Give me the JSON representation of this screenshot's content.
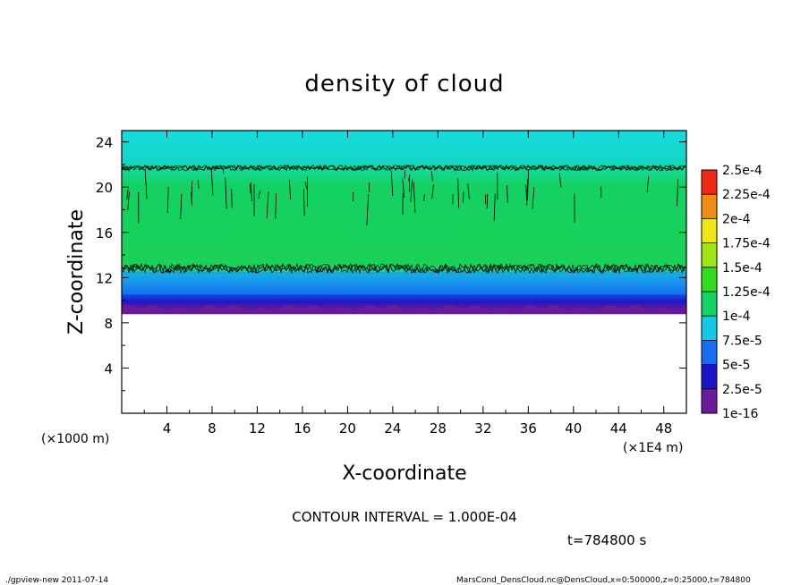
{
  "chart_data": {
    "type": "heatmap",
    "title": "density of cloud",
    "xlabel": "X-coordinate",
    "ylabel": "Z-coordinate",
    "x_unit": "(×1E4 m)",
    "y_unit": "(×1000 m)",
    "xlim": [
      0,
      50
    ],
    "ylim": [
      0,
      25
    ],
    "x_ticks": [
      4,
      8,
      12,
      16,
      20,
      24,
      28,
      32,
      36,
      40,
      44,
      48
    ],
    "y_ticks": [
      4,
      8,
      12,
      16,
      20,
      24
    ],
    "grid": false,
    "colorbar": {
      "position": "right",
      "levels": [
        "1e-16",
        "2.5e-5",
        "5e-5",
        "7.5e-5",
        "1e-4",
        "1.25e-4",
        "1.5e-4",
        "1.75e-4",
        "2e-4",
        "2.25e-4",
        "2.5e-4"
      ],
      "colors": [
        "#6a1b9a",
        "#1a14c8",
        "#1a6cf0",
        "#14c8e6",
        "#14d264",
        "#32dc1e",
        "#a0e614",
        "#f0e614",
        "#f08c14",
        "#f02814",
        "#f08c8c"
      ]
    },
    "regions": [
      {
        "z_from": 0,
        "z_to": 9,
        "level": "none"
      },
      {
        "z_from": 9,
        "z_to": 9.8,
        "level": "1e-16"
      },
      {
        "z_from": 9.8,
        "z_to": 10.5,
        "level": "2.5e-5"
      },
      {
        "z_from": 10.5,
        "z_to": 12.5,
        "level": "5e-5"
      },
      {
        "z_from": 12.5,
        "z_to": 22,
        "level": "1e-4"
      },
      {
        "z_from": 22,
        "z_to": 25,
        "level": "7.5e-5"
      }
    ],
    "contour_bands_z": [
      12.8,
      21.7
    ],
    "annotations": {
      "contour_interval": "CONTOUR INTERVAL = 1.000E-04",
      "time": "t=784800 s",
      "footer_left": "./gpview-new   2011-07-14",
      "footer_right": "MarsCond_DensCloud.nc@DensCloud,x=0:500000,z=0:25000,t=784800"
    }
  }
}
